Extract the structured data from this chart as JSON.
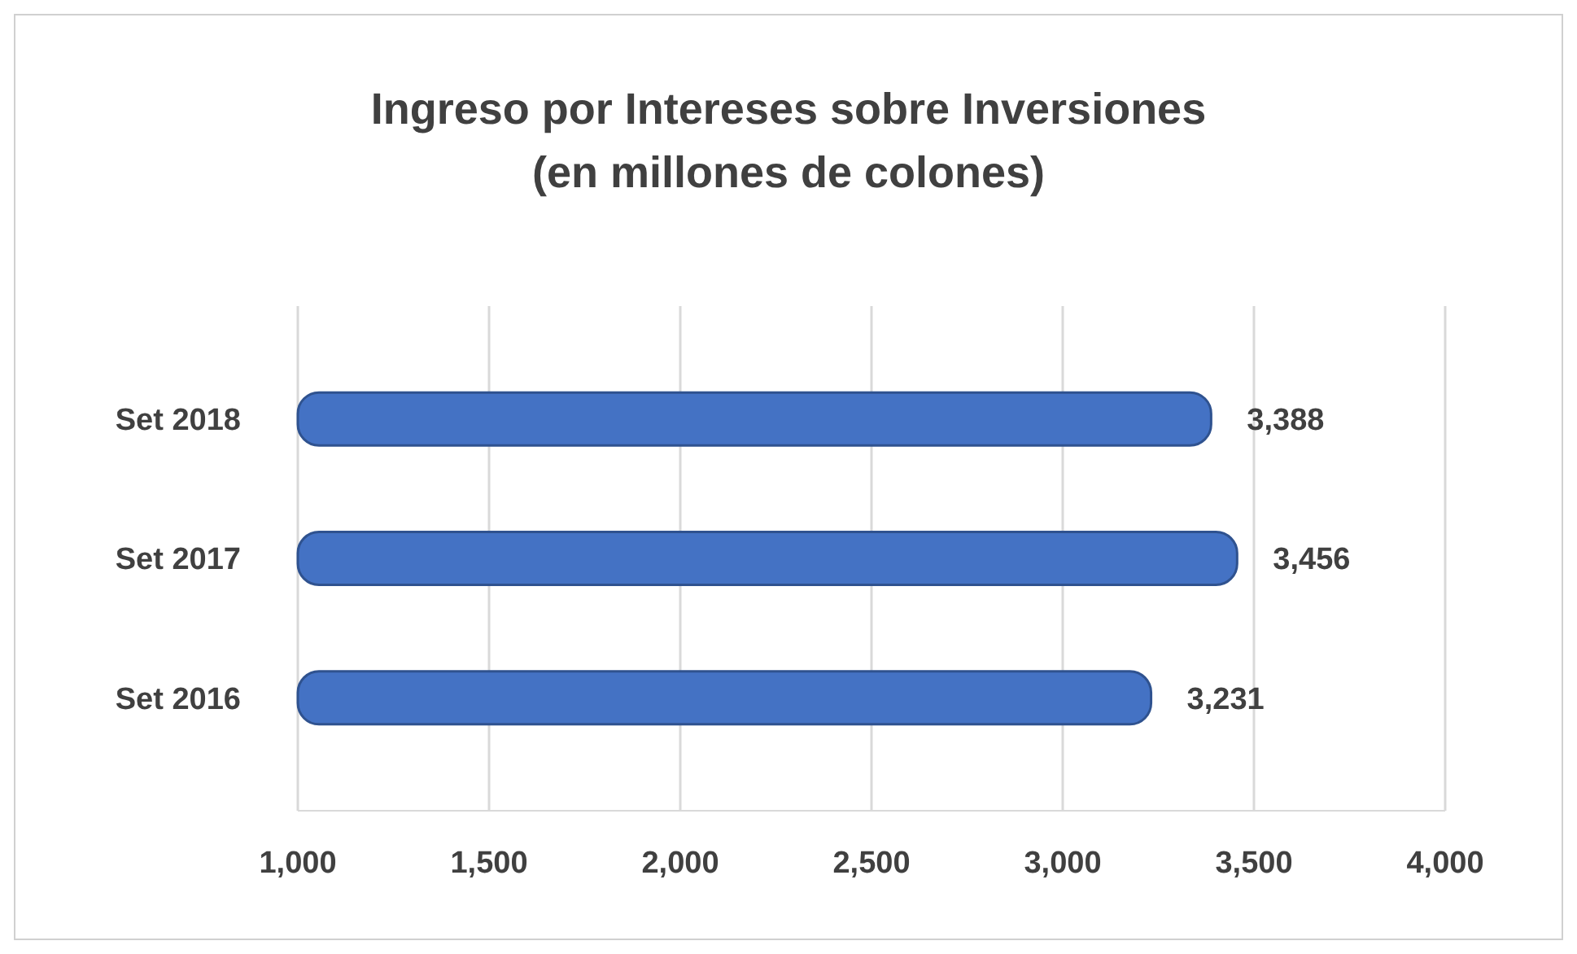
{
  "chart_data": {
    "type": "bar",
    "orientation": "horizontal",
    "title": "Ingreso por Intereses sobre Inversiones",
    "subtitle": "(en millones de colones)",
    "categories": [
      "Set 2018",
      "Set 2017",
      "Set 2016"
    ],
    "values": [
      3388,
      3456,
      3231
    ],
    "color": "#4472c4",
    "xlim": [
      1000,
      4000
    ],
    "xticks": [
      {
        "value": 1000,
        "label": "1,000"
      },
      {
        "value": 1500,
        "label": "1,500"
      },
      {
        "value": 2000,
        "label": "2,000"
      },
      {
        "value": 2500,
        "label": "2,500"
      },
      {
        "value": 3000,
        "label": "3,000"
      },
      {
        "value": 3500,
        "label": "3,500"
      },
      {
        "value": 4000,
        "label": "4,000"
      }
    ],
    "value_labels": [
      "3,388",
      "3,456",
      "3,231"
    ],
    "grid": "x"
  }
}
